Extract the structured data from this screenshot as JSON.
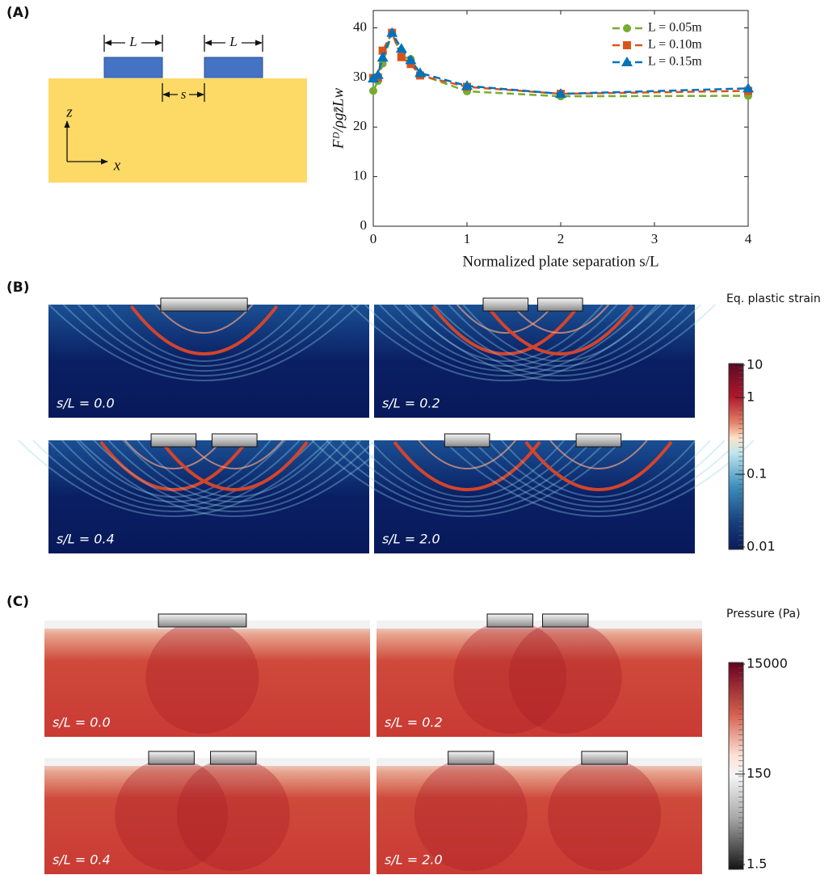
{
  "panel_labels": [
    "(A)",
    "(B)",
    "(C)"
  ],
  "schematic": {
    "plate_width_labels": [
      "L",
      "L"
    ],
    "separation_label": "s",
    "axis_labels": [
      "z",
      "x"
    ]
  },
  "chart_data": {
    "type": "line",
    "x": [
      0,
      0.05,
      0.1,
      0.2,
      0.3,
      0.4,
      0.5,
      1,
      2,
      4
    ],
    "series": [
      {
        "name": "L = 0.05m",
        "color": "#77ac30",
        "marker": "circle",
        "values": [
          27.3,
          29.3,
          32.8,
          39,
          34.3,
          33.7,
          30.6,
          27.2,
          26.2,
          26.3
        ]
      },
      {
        "name": "L = 0.10m",
        "color": "#d95319",
        "marker": "square",
        "values": [
          29.9,
          30,
          35.4,
          39,
          34.1,
          32.7,
          30.4,
          28.1,
          26.7,
          27.3
        ]
      },
      {
        "name": "L = 0.15m",
        "color": "#0072bd",
        "marker": "triangle",
        "values": [
          29.8,
          30.5,
          34,
          39,
          35.8,
          33.5,
          30.9,
          28.3,
          26.7,
          27.8
        ]
      }
    ],
    "xlim": [
      0,
      4
    ],
    "ylim": [
      0,
      43.5
    ],
    "xticks": [
      0,
      1,
      2,
      3,
      4
    ],
    "yticks": [
      0,
      10,
      20,
      30,
      40
    ],
    "x_label": "Normalized plate separation s/L",
    "y_label": "Fᴰ/ρgz̄Lw",
    "legend": "upper right",
    "dashed": true
  },
  "strain_panel": {
    "captions": [
      "s/L = 0.0",
      "s/L = 0.2",
      "s/L = 0.4",
      "s/L = 2.0"
    ],
    "colorbar": {
      "title": "Eq. plastic strain",
      "labels": [
        "10",
        "1",
        "0.1",
        "0.01"
      ]
    }
  },
  "pressure_panel": {
    "captions": [
      "s/L = 0.0",
      "s/L = 0.2",
      "s/L = 0.4",
      "s/L = 2.0"
    ],
    "colorbar": {
      "title": "Pressure (Pa)",
      "labels": [
        "15000",
        "150",
        "1.5"
      ]
    }
  }
}
